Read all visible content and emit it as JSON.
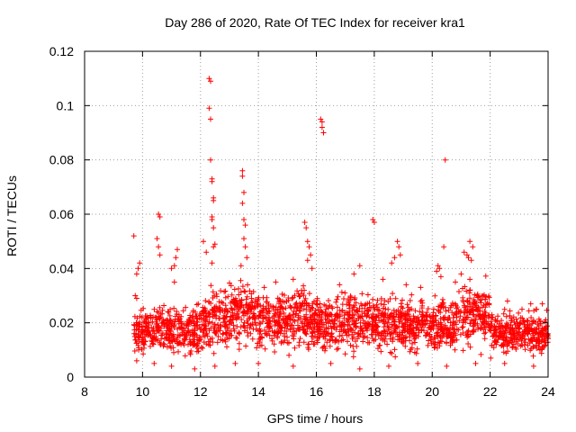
{
  "chart_data": {
    "type": "scatter",
    "title": "Day 286 of 2020, Rate Of TEC Index for receiver kra1",
    "xlabel": "GPS time / hours",
    "ylabel": "ROTI / TECUs",
    "xlim": [
      8,
      24
    ],
    "ylim": [
      0,
      0.12
    ],
    "x_ticks": [
      8,
      10,
      12,
      14,
      16,
      18,
      20,
      22,
      24
    ],
    "x_tick_labels": [
      "8",
      "10",
      "12",
      "14",
      "16",
      "18",
      "20",
      "22",
      "24"
    ],
    "y_ticks": [
      0,
      0.02,
      0.04,
      0.06,
      0.08,
      0.1,
      0.12
    ],
    "y_tick_labels": [
      "0",
      "0.02",
      "0.04",
      "0.06",
      "0.08",
      "0.1",
      "0.12"
    ],
    "grid": true,
    "marker": "plus",
    "color": "#ff0000",
    "series": [
      {
        "name": "ROTI",
        "points": [
          [
            9.7,
            0.052
          ],
          [
            9.8,
            0.038
          ],
          [
            9.85,
            0.04
          ],
          [
            9.9,
            0.042
          ],
          [
            9.75,
            0.03
          ],
          [
            9.8,
            0.029
          ],
          [
            10.55,
            0.06
          ],
          [
            10.6,
            0.059
          ],
          [
            10.5,
            0.051
          ],
          [
            10.55,
            0.048
          ],
          [
            10.6,
            0.045
          ],
          [
            11.0,
            0.04
          ],
          [
            11.1,
            0.041
          ],
          [
            11.2,
            0.047
          ],
          [
            11.15,
            0.044
          ],
          [
            11.1,
            0.035
          ],
          [
            12.3,
            0.11
          ],
          [
            12.35,
            0.109
          ],
          [
            12.3,
            0.099
          ],
          [
            12.35,
            0.095
          ],
          [
            12.35,
            0.08
          ],
          [
            12.4,
            0.073
          ],
          [
            12.4,
            0.072
          ],
          [
            12.45,
            0.066
          ],
          [
            12.45,
            0.065
          ],
          [
            12.4,
            0.059
          ],
          [
            12.4,
            0.058
          ],
          [
            12.45,
            0.055
          ],
          [
            12.5,
            0.049
          ],
          [
            12.45,
            0.048
          ],
          [
            12.4,
            0.042
          ],
          [
            12.1,
            0.05
          ],
          [
            12.2,
            0.046
          ],
          [
            13.45,
            0.076
          ],
          [
            13.45,
            0.074
          ],
          [
            13.5,
            0.068
          ],
          [
            13.45,
            0.064
          ],
          [
            13.5,
            0.058
          ],
          [
            13.55,
            0.056
          ],
          [
            13.5,
            0.051
          ],
          [
            13.55,
            0.048
          ],
          [
            13.6,
            0.044
          ],
          [
            13.4,
            0.041
          ],
          [
            15.6,
            0.057
          ],
          [
            15.65,
            0.055
          ],
          [
            15.7,
            0.05
          ],
          [
            15.75,
            0.048
          ],
          [
            15.8,
            0.045
          ],
          [
            15.7,
            0.043
          ],
          [
            15.85,
            0.04
          ],
          [
            16.15,
            0.095
          ],
          [
            16.2,
            0.094
          ],
          [
            16.2,
            0.092
          ],
          [
            16.25,
            0.09
          ],
          [
            17.95,
            0.058
          ],
          [
            18.0,
            0.057
          ],
          [
            18.8,
            0.05
          ],
          [
            18.85,
            0.048
          ],
          [
            18.7,
            0.044
          ],
          [
            18.6,
            0.042
          ],
          [
            18.9,
            0.045
          ],
          [
            20.2,
            0.041
          ],
          [
            20.25,
            0.04
          ],
          [
            20.15,
            0.039
          ],
          [
            20.3,
            0.037
          ],
          [
            20.45,
            0.08
          ],
          [
            20.4,
            0.048
          ],
          [
            21.3,
            0.05
          ],
          [
            21.2,
            0.045
          ],
          [
            21.25,
            0.044
          ],
          [
            21.35,
            0.043
          ],
          [
            21.1,
            0.046
          ],
          [
            21.4,
            0.048
          ],
          [
            21.0,
            0.038
          ],
          [
            21.3,
            0.036
          ],
          [
            14.2,
            0.033
          ],
          [
            14.6,
            0.035
          ],
          [
            15.2,
            0.036
          ],
          [
            16.8,
            0.034
          ],
          [
            17.3,
            0.038
          ],
          [
            17.5,
            0.041
          ],
          [
            18.3,
            0.036
          ],
          [
            19.1,
            0.034
          ],
          [
            19.6,
            0.033
          ],
          [
            20.8,
            0.035
          ],
          [
            22.6,
            0.028
          ],
          [
            23.1,
            0.025
          ],
          [
            23.4,
            0.027
          ],
          [
            23.6,
            0.025
          ],
          [
            23.8,
            0.027
          ],
          [
            9.8,
            0.006
          ],
          [
            10.4,
            0.005
          ],
          [
            11.0,
            0.004
          ],
          [
            11.8,
            0.003
          ],
          [
            12.5,
            0.004
          ],
          [
            13.2,
            0.005
          ],
          [
            14.0,
            0.005
          ],
          [
            15.2,
            0.004
          ],
          [
            16.5,
            0.005
          ],
          [
            17.5,
            0.003
          ],
          [
            18.5,
            0.004
          ],
          [
            19.5,
            0.005
          ],
          [
            20.5,
            0.004
          ],
          [
            21.5,
            0.005
          ],
          [
            22.5,
            0.005
          ],
          [
            23.5,
            0.004
          ]
        ],
        "dense_band": [
          {
            "x": [
              9.7,
              10.0
            ],
            "y": [
              0.006,
              0.024
            ]
          },
          {
            "x": [
              10.0,
              11.0
            ],
            "y": [
              0.006,
              0.026
            ]
          },
          {
            "x": [
              11.0,
              12.0
            ],
            "y": [
              0.005,
              0.026
            ]
          },
          {
            "x": [
              12.0,
              13.0
            ],
            "y": [
              0.006,
              0.033
            ]
          },
          {
            "x": [
              13.0,
              14.0
            ],
            "y": [
              0.007,
              0.034
            ]
          },
          {
            "x": [
              14.0,
              15.0
            ],
            "y": [
              0.007,
              0.032
            ]
          },
          {
            "x": [
              15.0,
              16.0
            ],
            "y": [
              0.006,
              0.033
            ]
          },
          {
            "x": [
              16.0,
              17.0
            ],
            "y": [
              0.006,
              0.03
            ]
          },
          {
            "x": [
              17.0,
              18.0
            ],
            "y": [
              0.005,
              0.032
            ]
          },
          {
            "x": [
              18.0,
              19.0
            ],
            "y": [
              0.006,
              0.03
            ]
          },
          {
            "x": [
              19.0,
              20.0
            ],
            "y": [
              0.006,
              0.028
            ]
          },
          {
            "x": [
              20.0,
              21.0
            ],
            "y": [
              0.006,
              0.03
            ]
          },
          {
            "x": [
              21.0,
              22.0
            ],
            "y": [
              0.007,
              0.034
            ]
          },
          {
            "x": [
              22.0,
              23.0
            ],
            "y": [
              0.006,
              0.024
            ]
          },
          {
            "x": [
              23.0,
              24.0
            ],
            "y": [
              0.006,
              0.024
            ]
          }
        ]
      }
    ]
  }
}
